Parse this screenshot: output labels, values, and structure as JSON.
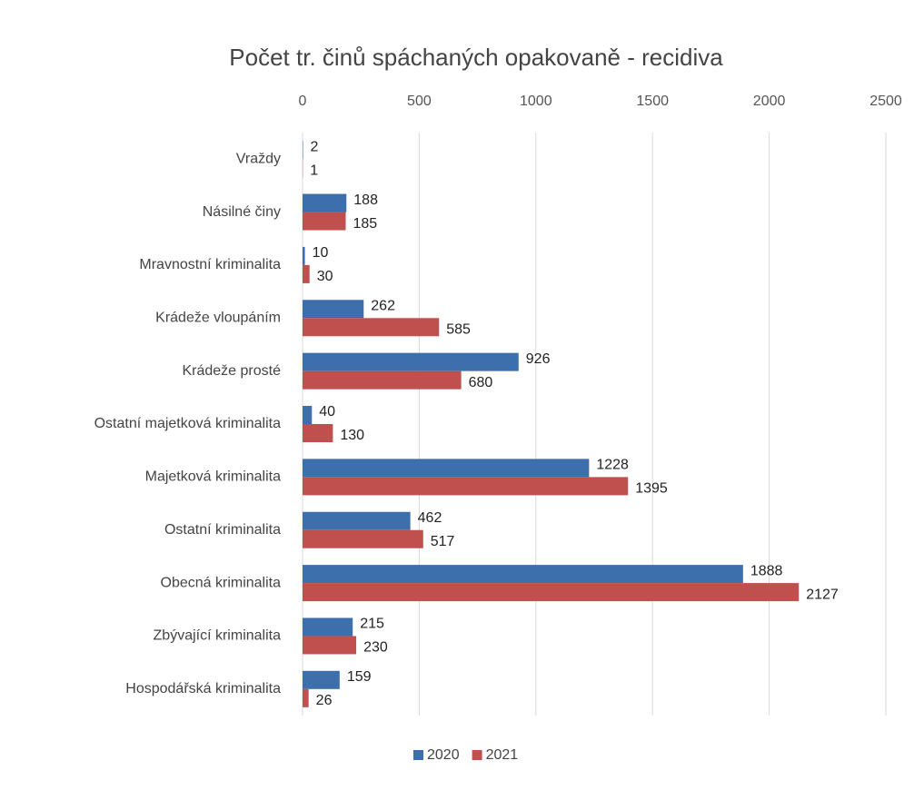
{
  "chart_data": {
    "type": "bar",
    "horizontal": true,
    "title": "Počet tr. činů spáchaných opakovaně - recidiva",
    "categories": [
      "Vraždy",
      "Násilné činy",
      "Mravnostní kriminalita",
      "Krádeže vloupáním",
      "Krádeže prosté",
      "Ostatní majetková kriminalita",
      "Majetková kriminalita",
      "Ostatní kriminalita",
      "Obecná kriminalita",
      "Zbývající kriminalita",
      "Hospodářská kriminalita"
    ],
    "series": [
      {
        "name": "2020",
        "color": "#3e6fad",
        "values": [
          2,
          188,
          10,
          262,
          926,
          40,
          1228,
          462,
          1888,
          215,
          159
        ]
      },
      {
        "name": "2021",
        "color": "#c0504d",
        "values": [
          1,
          185,
          30,
          585,
          680,
          130,
          1395,
          517,
          2127,
          230,
          26
        ]
      }
    ],
    "xlim": [
      0,
      2500
    ],
    "xticks": [
      0,
      500,
      1000,
      1500,
      2000,
      2500
    ],
    "grid": true,
    "legend": "bottom"
  }
}
